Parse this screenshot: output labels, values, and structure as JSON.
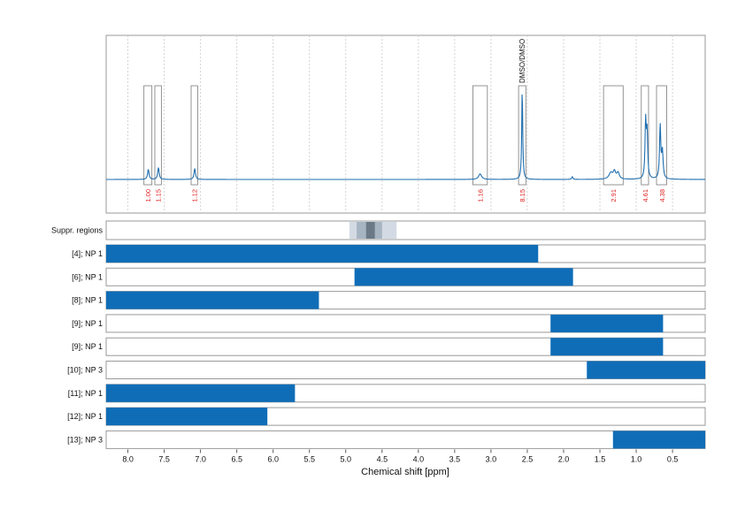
{
  "chart_data": {
    "type": "nmr_spectrum_with_range_bars",
    "xlabel": "Chemical shift [ppm]",
    "xlim": [
      8.3,
      0.05
    ],
    "x_reversed": true,
    "ticks": [
      8.0,
      7.5,
      7.0,
      6.5,
      6.0,
      5.5,
      5.0,
      4.5,
      4.0,
      3.5,
      3.0,
      2.5,
      2.0,
      1.5,
      1.0,
      0.5
    ],
    "tick_labels": [
      "8.0",
      "7.5",
      "7.0",
      "6.5",
      "6.0",
      "5.5",
      "5.0",
      "4.5",
      "4.0",
      "3.5",
      "3.0",
      "2.5",
      "2.0",
      "1.5",
      "1.0",
      "0.5"
    ],
    "grid": true,
    "spectrum": {
      "color": "#1f6fb0",
      "peaks": [
        {
          "ppm": 7.72,
          "height": 0.11,
          "width": 0.012
        },
        {
          "ppm": 7.58,
          "height": 0.13,
          "width": 0.012
        },
        {
          "ppm": 7.08,
          "height": 0.12,
          "width": 0.012
        },
        {
          "ppm": 3.15,
          "height": 0.06,
          "width": 0.025
        },
        {
          "ppm": 2.57,
          "height": 1.0,
          "width": 0.008
        },
        {
          "ppm": 1.88,
          "height": 0.03,
          "width": 0.01
        },
        {
          "ppm": 1.35,
          "height": 0.07,
          "width": 0.03
        },
        {
          "ppm": 1.3,
          "height": 0.08,
          "width": 0.02
        },
        {
          "ppm": 1.25,
          "height": 0.07,
          "width": 0.02
        },
        {
          "ppm": 0.87,
          "height": 0.62,
          "width": 0.01
        },
        {
          "ppm": 0.85,
          "height": 0.48,
          "width": 0.01
        },
        {
          "ppm": 0.67,
          "height": 0.58,
          "width": 0.01
        },
        {
          "ppm": 0.64,
          "height": 0.3,
          "width": 0.012
        }
      ]
    },
    "integral_regions": [
      {
        "from": 7.78,
        "to": 7.67,
        "label": "1.00"
      },
      {
        "from": 7.63,
        "to": 7.54,
        "label": "1.15"
      },
      {
        "from": 7.13,
        "to": 7.04,
        "label": "1.12"
      },
      {
        "from": 3.25,
        "to": 3.05,
        "label": "1.16"
      },
      {
        "from": 2.62,
        "to": 2.52,
        "label": "8.15"
      },
      {
        "from": 1.45,
        "to": 1.18,
        "label": "2.91"
      },
      {
        "from": 0.93,
        "to": 0.83,
        "label": "4.61"
      },
      {
        "from": 0.72,
        "to": 0.58,
        "label": "4.38"
      }
    ],
    "annotations": [
      {
        "ppm": 2.57,
        "text": "DMSO/DMSO"
      }
    ],
    "suppressed_regions": {
      "label": "Suppr. regions",
      "bands": [
        {
          "from": 4.95,
          "to": 4.3,
          "shade": "#d3dae3"
        },
        {
          "from": 4.85,
          "to": 4.5,
          "shade": "#a7b4c2"
        },
        {
          "from": 4.72,
          "to": 4.6,
          "shade": "#6b7987"
        }
      ]
    },
    "range_rows": [
      {
        "label": "[4]; NP 1",
        "from": 8.3,
        "to": 2.35
      },
      {
        "label": "[6]; NP 1",
        "from": 4.88,
        "to": 1.87
      },
      {
        "label": "[8]; NP 1",
        "from": 8.3,
        "to": 5.37
      },
      {
        "label": "[9]; NP 1",
        "from": 2.18,
        "to": 0.63
      },
      {
        "label": "[9]; NP 1",
        "from": 2.18,
        "to": 0.63
      },
      {
        "label": "[10]; NP 3",
        "from": 1.68,
        "to": 0.05
      },
      {
        "label": "[11]; NP 1",
        "from": 8.3,
        "to": 5.7
      },
      {
        "label": "[12]; NP 1",
        "from": 8.3,
        "to": 6.08
      },
      {
        "label": "[13]; NP 3",
        "from": 1.32,
        "to": 0.05
      }
    ],
    "bar_color": "#0f6db7"
  }
}
